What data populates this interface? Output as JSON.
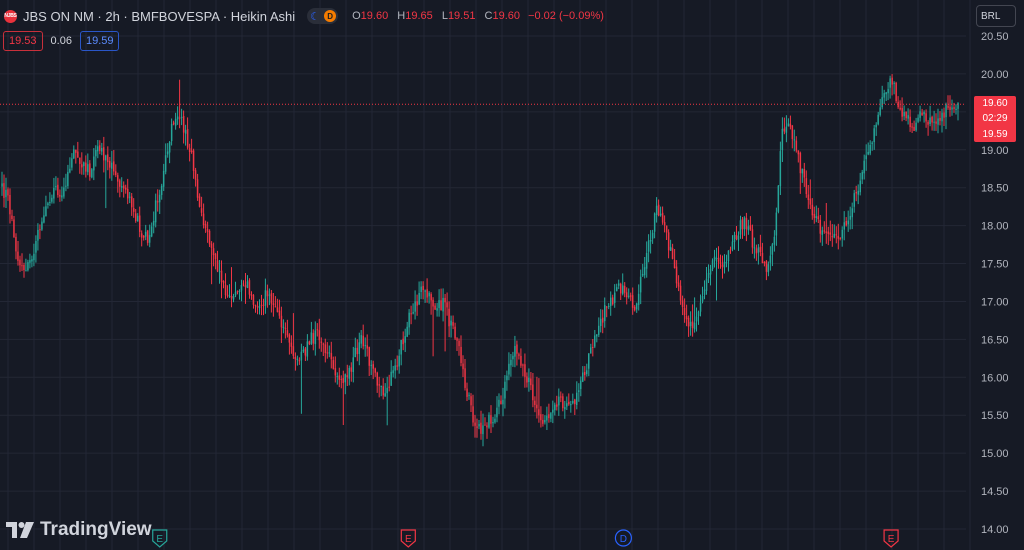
{
  "header": {
    "logo_text": "NJBS",
    "title": "JBS ON NM · 2h · BMFBOVESPA · Heikin Ashi",
    "market_status_icon": "moon-icon",
    "delay_badge": "D",
    "ohlc": {
      "o_label": "O",
      "o_value": "19.60",
      "h_label": "H",
      "h_value": "19.65",
      "l_label": "L",
      "l_value": "19.51",
      "c_label": "C",
      "c_value": "19.60",
      "change": "−0.02 (−0.09%)"
    }
  },
  "quotes": {
    "bid": "19.53",
    "spread": "0.06",
    "ask": "19.59"
  },
  "currency": {
    "label": "BRL"
  },
  "last_price_tag": {
    "price": "19.60",
    "countdown": "02:29",
    "bid_price": "19.59"
  },
  "brand": {
    "name": "TradingView"
  },
  "colors": {
    "background": "#161a25",
    "up": "#26a69a",
    "down": "#f23645",
    "grid": "#232735",
    "text": "#b2b5be"
  },
  "chart_data": {
    "type": "candlestick",
    "style": "Heikin Ashi",
    "timeframe": "2h",
    "ylim": [
      14.0,
      20.6
    ],
    "y_ticks": [
      "14.00",
      "14.50",
      "15.00",
      "15.50",
      "16.00",
      "16.50",
      "17.00",
      "17.50",
      "18.00",
      "18.50",
      "19.00",
      "19.50",
      "20.00",
      "20.50"
    ],
    "last_price": 19.6,
    "grid": true,
    "path": [
      18.5,
      18.3,
      17.5,
      17.4,
      17.6,
      17.9,
      18.2,
      18.5,
      18.4,
      18.7,
      19.0,
      18.8,
      18.7,
      19.1,
      18.9,
      18.8,
      18.6,
      18.4,
      18.2,
      17.9,
      17.8,
      18.3,
      18.7,
      19.3,
      19.5,
      19.2,
      18.8,
      18.2,
      17.9,
      17.6,
      17.2,
      17.0,
      17.1,
      17.3,
      17.0,
      16.9,
      17.1,
      17.0,
      16.7,
      16.5,
      16.2,
      16.3,
      16.5,
      16.6,
      16.4,
      16.1,
      15.9,
      16.0,
      16.3,
      16.5,
      16.2,
      15.9,
      15.8,
      16.0,
      16.3,
      16.7,
      16.9,
      17.2,
      17.1,
      16.9,
      17.0,
      16.7,
      16.5,
      15.9,
      15.5,
      15.3,
      15.4,
      15.5,
      15.7,
      16.2,
      16.4,
      16.1,
      15.8,
      15.5,
      15.4,
      15.6,
      15.7,
      15.6,
      15.7,
      16.0,
      16.3,
      16.6,
      16.9,
      17.0,
      17.2,
      17.1,
      16.9,
      17.3,
      17.8,
      18.2,
      18.0,
      17.6,
      17.2,
      16.8,
      16.6,
      16.9,
      17.3,
      17.6,
      17.5,
      17.7,
      17.9,
      18.1,
      17.8,
      17.6,
      17.4,
      17.8,
      19.2,
      19.4,
      19.0,
      18.6,
      18.2,
      18.0,
      17.9,
      17.8,
      17.9,
      18.1,
      18.4,
      18.7,
      19.0,
      19.4,
      19.7,
      19.9,
      19.6,
      19.4,
      19.3,
      19.5,
      19.4,
      19.3,
      19.5,
      19.6,
      19.6
    ],
    "earnings_markers": [
      {
        "label": "E",
        "type": "earnings",
        "date_index": 0.165
      },
      {
        "label": "E",
        "type": "earnings",
        "date_index": 0.425
      },
      {
        "label": "D",
        "type": "dividend",
        "date_index": 0.65
      },
      {
        "label": "E",
        "type": "earnings",
        "date_index": 0.93
      }
    ]
  }
}
